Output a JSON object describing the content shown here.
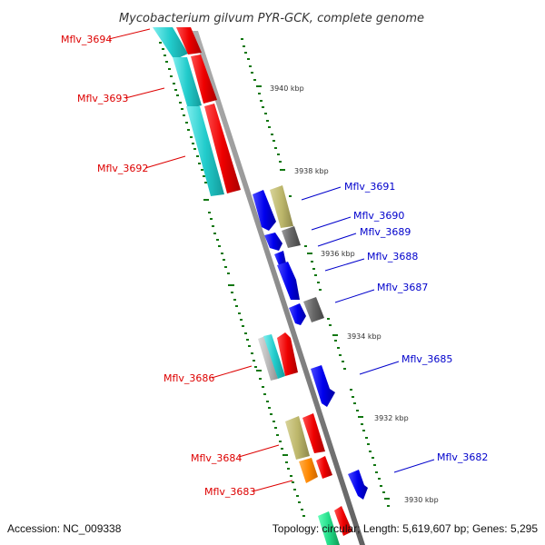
{
  "title": "Mycobacterium gilvum PYR-GCK, complete genome",
  "footer": {
    "accession": "Accession: NC_009338",
    "summary": "Topology: circular; Length: 5,619,607 bp; Genes: 5,295"
  },
  "scale_labels": [
    "3940 kbp",
    "3938 kbp",
    "3936 kbp",
    "3934 kbp",
    "3932 kbp",
    "3930 kbp"
  ],
  "genes_reverse": [
    "Mflv_3694",
    "Mflv_3693",
    "Mflv_3692",
    "Mflv_3686",
    "Mflv_3684",
    "Mflv_3683"
  ],
  "genes_forward": [
    "Mflv_3691",
    "Mflv_3690",
    "Mflv_3689",
    "Mflv_3688",
    "Mflv_3687",
    "Mflv_3685",
    "Mflv_3682"
  ],
  "colors": {
    "backbone": "#8c8c8c",
    "reverse_label": "#dd0000",
    "forward_label": "#0000cc",
    "cds_red": "#ee0000",
    "cds_blue": "#0000ee",
    "cyan": "#22cccc",
    "khaki": "#bdb76b",
    "gray_feature": "#666666",
    "orange": "#ff8800",
    "light_gray": "#bbbbbb",
    "tick_green": "#117711"
  }
}
